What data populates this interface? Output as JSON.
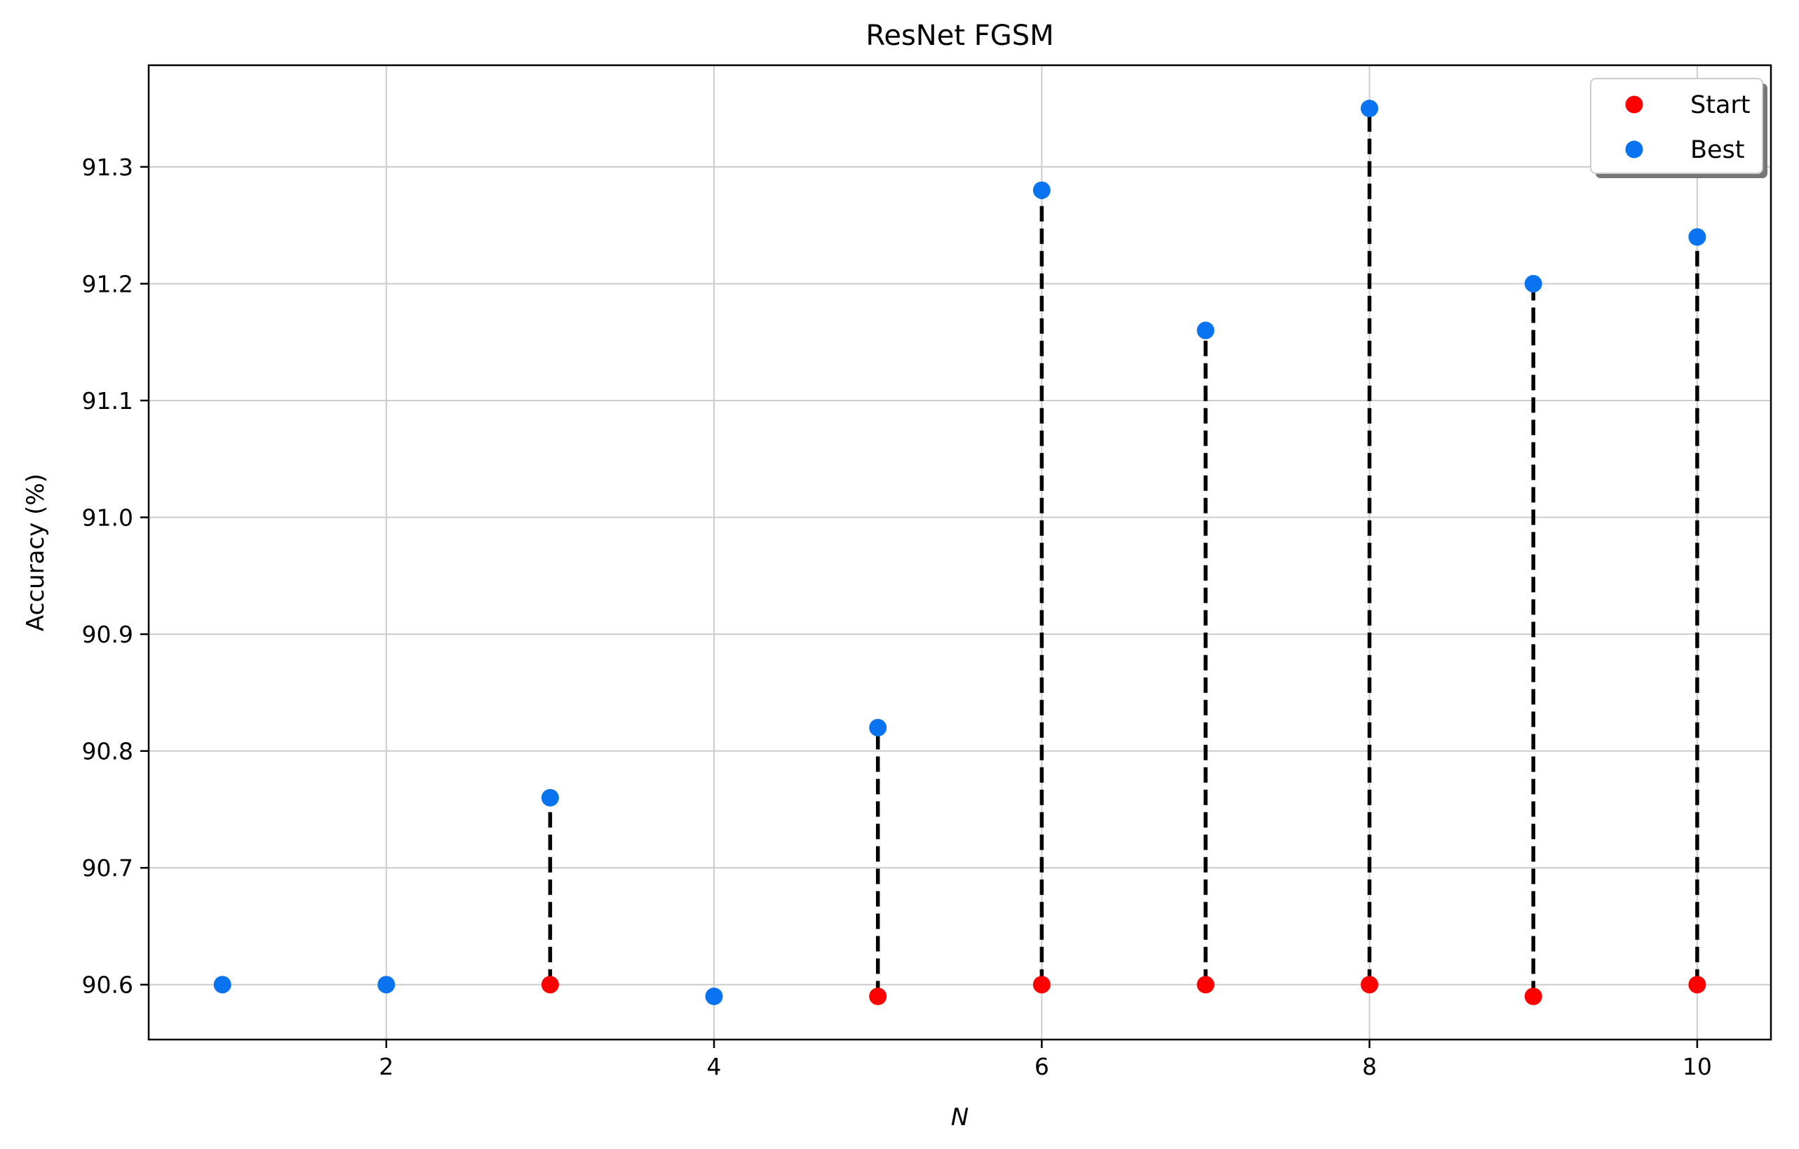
{
  "chart_data": {
    "type": "scatter",
    "title": "ResNet FGSM",
    "xlabel": "N",
    "ylabel": "Accuracy (%)",
    "xlim": [
      0.55,
      10.45
    ],
    "ylim": [
      90.553,
      91.387
    ],
    "xticks": [
      2,
      4,
      6,
      8,
      10
    ],
    "yticks": [
      90.6,
      90.7,
      90.8,
      90.9,
      91.0,
      91.1,
      91.2,
      91.3
    ],
    "ytick_decimals": 1,
    "grid": true,
    "legend_position": "top-right",
    "connector_style": "black dashed vertical line from Start to Best",
    "series": [
      {
        "name": "Start",
        "color": "#ff0000",
        "points": [
          {
            "x": 3,
            "y": 90.6
          },
          {
            "x": 5,
            "y": 90.59
          },
          {
            "x": 6,
            "y": 90.6
          },
          {
            "x": 7,
            "y": 90.6
          },
          {
            "x": 8,
            "y": 90.6
          },
          {
            "x": 9,
            "y": 90.59
          },
          {
            "x": 10,
            "y": 90.6
          }
        ]
      },
      {
        "name": "Best",
        "color": "#0a74f0",
        "points": [
          {
            "x": 1,
            "y": 90.6
          },
          {
            "x": 2,
            "y": 90.6
          },
          {
            "x": 3,
            "y": 90.76
          },
          {
            "x": 4,
            "y": 90.59
          },
          {
            "x": 5,
            "y": 90.82
          },
          {
            "x": 6,
            "y": 91.28
          },
          {
            "x": 7,
            "y": 91.16
          },
          {
            "x": 8,
            "y": 91.35
          },
          {
            "x": 9,
            "y": 91.2
          },
          {
            "x": 10,
            "y": 91.24
          }
        ]
      }
    ]
  }
}
